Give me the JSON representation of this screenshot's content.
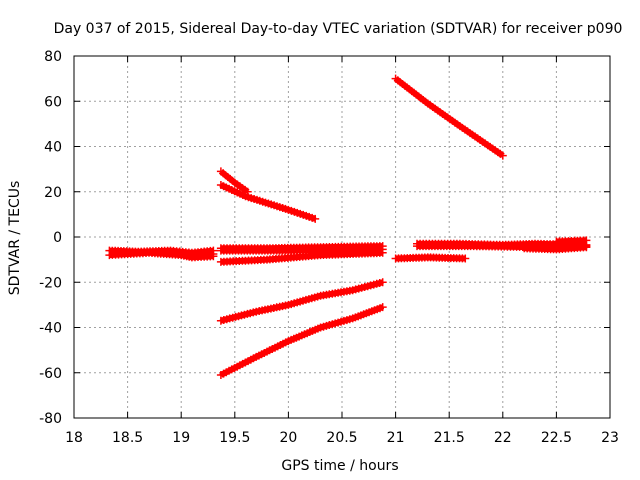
{
  "chart_data": {
    "type": "line",
    "title": "Day 037 of 2015, Sidereal Day-to-day VTEC variation (SDTVAR) for receiver p090",
    "xlabel": "GPS time / hours",
    "ylabel": "SDTVAR / TECUs",
    "xlim": [
      18,
      23
    ],
    "ylim": [
      -80,
      80
    ],
    "x_ticks": [
      "18",
      "18.5",
      "19",
      "19.5",
      "20",
      "20.5",
      "21",
      "21.5",
      "22",
      "22.5",
      "23"
    ],
    "y_ticks": [
      "80",
      "60",
      "40",
      "20",
      "0",
      "-20",
      "-40",
      "-60",
      "-80"
    ],
    "grid": true,
    "marker": "plus",
    "color": "#ff0000",
    "series": [
      {
        "points": [
          [
            18.33,
            -6
          ],
          [
            18.6,
            -6.5
          ],
          [
            18.9,
            -6
          ],
          [
            19.1,
            -7
          ],
          [
            19.3,
            -6
          ]
        ]
      },
      {
        "points": [
          [
            18.33,
            -8
          ],
          [
            18.7,
            -7
          ],
          [
            19.0,
            -8
          ],
          [
            19.3,
            -7.5
          ]
        ]
      },
      {
        "points": [
          [
            19.0,
            -8
          ],
          [
            19.1,
            -9
          ],
          [
            19.3,
            -8.5
          ]
        ]
      },
      {
        "points": [
          [
            19.37,
            29
          ],
          [
            19.5,
            24
          ],
          [
            19.62,
            20
          ]
        ]
      },
      {
        "points": [
          [
            19.37,
            23
          ],
          [
            19.6,
            18
          ],
          [
            20.0,
            12
          ],
          [
            20.25,
            8
          ]
        ]
      },
      {
        "points": [
          [
            19.37,
            -5
          ],
          [
            19.8,
            -5
          ],
          [
            20.3,
            -4.5
          ],
          [
            20.88,
            -4
          ]
        ]
      },
      {
        "points": [
          [
            19.37,
            -6
          ],
          [
            20.0,
            -6
          ],
          [
            20.5,
            -5.5
          ],
          [
            20.88,
            -5.5
          ]
        ]
      },
      {
        "points": [
          [
            19.37,
            -11
          ],
          [
            19.8,
            -10
          ],
          [
            20.3,
            -8
          ],
          [
            20.88,
            -7
          ]
        ]
      },
      {
        "points": [
          [
            19.37,
            -37
          ],
          [
            19.7,
            -33
          ],
          [
            20.0,
            -30
          ],
          [
            20.3,
            -26
          ],
          [
            20.6,
            -23.5
          ],
          [
            20.88,
            -20
          ]
        ]
      },
      {
        "points": [
          [
            19.37,
            -61
          ],
          [
            19.7,
            -53
          ],
          [
            20.0,
            -46
          ],
          [
            20.3,
            -40
          ],
          [
            20.6,
            -36
          ],
          [
            20.88,
            -31
          ]
        ]
      },
      {
        "points": [
          [
            21.0,
            70
          ],
          [
            21.3,
            59
          ],
          [
            21.6,
            49
          ],
          [
            22.0,
            36
          ]
        ]
      },
      {
        "points": [
          [
            21.0,
            -9.5
          ],
          [
            21.3,
            -9
          ],
          [
            21.65,
            -9.5
          ]
        ]
      },
      {
        "points": [
          [
            21.2,
            -3
          ],
          [
            21.6,
            -3
          ],
          [
            22.0,
            -3.5
          ],
          [
            22.3,
            -3
          ],
          [
            22.78,
            -3.5
          ]
        ]
      },
      {
        "points": [
          [
            21.2,
            -4
          ],
          [
            21.7,
            -4
          ],
          [
            22.3,
            -4.5
          ],
          [
            22.78,
            -4
          ]
        ]
      },
      {
        "points": [
          [
            22.2,
            -5
          ],
          [
            22.5,
            -5.5
          ],
          [
            22.78,
            -4.5
          ]
        ]
      },
      {
        "points": [
          [
            22.5,
            -2
          ],
          [
            22.78,
            -1.5
          ]
        ]
      }
    ]
  }
}
